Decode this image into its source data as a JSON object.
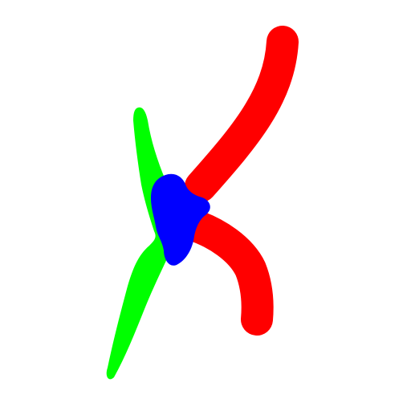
{
  "canvas": {
    "background": "#ffffff"
  },
  "strokes": [
    {
      "name": "green-stroke",
      "color": "#00ff00"
    },
    {
      "name": "red-stroke-upper",
      "color": "#ff0000"
    },
    {
      "name": "red-stroke-lower",
      "color": "#ff0000"
    },
    {
      "name": "blue-blob",
      "color": "#0000ff"
    }
  ]
}
